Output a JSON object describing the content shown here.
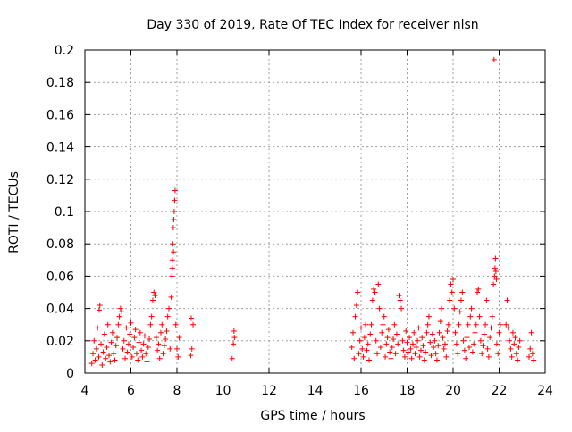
{
  "chart_data": {
    "type": "scatter",
    "title": "Day 330 of 2019, Rate Of TEC Index for receiver nlsn",
    "xlabel": "GPS time / hours",
    "ylabel": "ROTI / TECUs",
    "xlim": [
      4,
      24
    ],
    "ylim": [
      0,
      0.2
    ],
    "x_ticks": [
      "4",
      "6",
      "8",
      "10",
      "12",
      "14",
      "16",
      "18",
      "20",
      "22",
      "24"
    ],
    "y_ticks": [
      "0",
      "0.02",
      "0.04",
      "0.06",
      "0.08",
      "0.1",
      "0.12",
      "0.14",
      "0.16",
      "0.18",
      "0.2"
    ],
    "grid": true,
    "marker": "+",
    "series": [
      {
        "name": "ROTI",
        "color": "#ff0000",
        "points": [
          [
            4.3,
            0.006
          ],
          [
            4.35,
            0.012
          ],
          [
            4.4,
            0.02
          ],
          [
            4.45,
            0.008
          ],
          [
            4.5,
            0.015
          ],
          [
            4.55,
            0.028
          ],
          [
            4.6,
            0.01
          ],
          [
            4.62,
            0.039
          ],
          [
            4.65,
            0.042
          ],
          [
            4.7,
            0.018
          ],
          [
            4.75,
            0.005
          ],
          [
            4.8,
            0.013
          ],
          [
            4.85,
            0.024
          ],
          [
            4.9,
            0.009
          ],
          [
            4.95,
            0.016
          ],
          [
            5.0,
            0.03
          ],
          [
            5.05,
            0.011
          ],
          [
            5.1,
            0.007
          ],
          [
            5.15,
            0.019
          ],
          [
            5.2,
            0.025
          ],
          [
            5.25,
            0.012
          ],
          [
            5.3,
            0.008
          ],
          [
            5.35,
            0.017
          ],
          [
            5.4,
            0.022
          ],
          [
            5.45,
            0.03
          ],
          [
            5.5,
            0.035
          ],
          [
            5.55,
            0.04
          ],
          [
            5.6,
            0.038
          ],
          [
            5.65,
            0.015
          ],
          [
            5.7,
            0.02
          ],
          [
            5.75,
            0.009
          ],
          [
            5.8,
            0.028
          ],
          [
            5.85,
            0.013
          ],
          [
            5.9,
            0.018
          ],
          [
            5.95,
            0.024
          ],
          [
            6.0,
            0.031
          ],
          [
            6.05,
            0.01
          ],
          [
            6.1,
            0.016
          ],
          [
            6.15,
            0.022
          ],
          [
            6.2,
            0.027
          ],
          [
            6.25,
            0.012
          ],
          [
            6.3,
            0.008
          ],
          [
            6.35,
            0.019
          ],
          [
            6.4,
            0.025
          ],
          [
            6.45,
            0.014
          ],
          [
            6.5,
            0.01
          ],
          [
            6.55,
            0.018
          ],
          [
            6.6,
            0.023
          ],
          [
            6.65,
            0.012
          ],
          [
            6.7,
            0.007
          ],
          [
            6.75,
            0.016
          ],
          [
            6.8,
            0.021
          ],
          [
            6.85,
            0.03
          ],
          [
            6.9,
            0.035
          ],
          [
            6.95,
            0.045
          ],
          [
            7.0,
            0.05
          ],
          [
            7.05,
            0.048
          ],
          [
            7.1,
            0.022
          ],
          [
            7.15,
            0.014
          ],
          [
            7.2,
            0.018
          ],
          [
            7.25,
            0.009
          ],
          [
            7.3,
            0.025
          ],
          [
            7.35,
            0.03
          ],
          [
            7.4,
            0.012
          ],
          [
            7.45,
            0.017
          ],
          [
            7.5,
            0.021
          ],
          [
            7.55,
            0.026
          ],
          [
            7.6,
            0.035
          ],
          [
            7.65,
            0.04
          ],
          [
            7.7,
            0.015
          ],
          [
            7.75,
            0.047
          ],
          [
            7.78,
            0.06
          ],
          [
            7.8,
            0.07
          ],
          [
            7.82,
            0.08
          ],
          [
            7.84,
            0.09
          ],
          [
            7.86,
            0.095
          ],
          [
            7.88,
            0.1
          ],
          [
            7.9,
            0.107
          ],
          [
            7.92,
            0.113
          ],
          [
            7.85,
            0.075
          ],
          [
            7.8,
            0.065
          ],
          [
            7.95,
            0.03
          ],
          [
            8.0,
            0.015
          ],
          [
            8.05,
            0.01
          ],
          [
            8.1,
            0.022
          ],
          [
            8.6,
            0.011
          ],
          [
            8.65,
            0.015
          ],
          [
            8.7,
            0.03
          ],
          [
            8.62,
            0.034
          ],
          [
            10.4,
            0.009
          ],
          [
            10.45,
            0.018
          ],
          [
            10.5,
            0.022
          ],
          [
            10.48,
            0.026
          ],
          [
            15.6,
            0.016
          ],
          [
            15.65,
            0.025
          ],
          [
            15.7,
            0.009
          ],
          [
            15.75,
            0.035
          ],
          [
            15.8,
            0.042
          ],
          [
            15.85,
            0.05
          ],
          [
            15.9,
            0.012
          ],
          [
            15.95,
            0.02
          ],
          [
            16.0,
            0.028
          ],
          [
            16.05,
            0.015
          ],
          [
            16.1,
            0.01
          ],
          [
            16.15,
            0.022
          ],
          [
            16.2,
            0.03
          ],
          [
            16.25,
            0.014
          ],
          [
            16.3,
            0.018
          ],
          [
            16.35,
            0.008
          ],
          [
            16.4,
            0.024
          ],
          [
            16.45,
            0.03
          ],
          [
            16.5,
            0.045
          ],
          [
            16.55,
            0.052
          ],
          [
            16.6,
            0.05
          ],
          [
            16.65,
            0.02
          ],
          [
            16.7,
            0.012
          ],
          [
            16.75,
            0.055
          ],
          [
            16.8,
            0.04
          ],
          [
            16.85,
            0.016
          ],
          [
            16.9,
            0.025
          ],
          [
            16.95,
            0.03
          ],
          [
            17.0,
            0.035
          ],
          [
            17.05,
            0.01
          ],
          [
            17.1,
            0.018
          ],
          [
            17.15,
            0.022
          ],
          [
            17.2,
            0.027
          ],
          [
            17.25,
            0.013
          ],
          [
            17.3,
            0.009
          ],
          [
            17.35,
            0.016
          ],
          [
            17.4,
            0.021
          ],
          [
            17.45,
            0.03
          ],
          [
            17.5,
            0.012
          ],
          [
            17.55,
            0.024
          ],
          [
            17.6,
            0.018
          ],
          [
            17.65,
            0.048
          ],
          [
            17.7,
            0.045
          ],
          [
            17.75,
            0.04
          ],
          [
            17.8,
            0.02
          ],
          [
            17.85,
            0.014
          ],
          [
            17.9,
            0.01
          ],
          [
            17.95,
            0.026
          ],
          [
            18.0,
            0.019
          ],
          [
            18.05,
            0.013
          ],
          [
            18.1,
            0.022
          ],
          [
            18.15,
            0.015
          ],
          [
            18.2,
            0.009
          ],
          [
            18.25,
            0.018
          ],
          [
            18.3,
            0.025
          ],
          [
            18.35,
            0.012
          ],
          [
            18.4,
            0.016
          ],
          [
            18.45,
            0.02
          ],
          [
            18.5,
            0.028
          ],
          [
            18.55,
            0.01
          ],
          [
            18.6,
            0.014
          ],
          [
            18.65,
            0.022
          ],
          [
            18.7,
            0.017
          ],
          [
            18.75,
            0.008
          ],
          [
            18.8,
            0.013
          ],
          [
            18.85,
            0.025
          ],
          [
            18.9,
            0.03
          ],
          [
            18.95,
            0.035
          ],
          [
            19.0,
            0.019
          ],
          [
            19.05,
            0.011
          ],
          [
            19.1,
            0.024
          ],
          [
            19.15,
            0.016
          ],
          [
            19.2,
            0.02
          ],
          [
            19.25,
            0.012
          ],
          [
            19.3,
            0.008
          ],
          [
            19.35,
            0.017
          ],
          [
            19.4,
            0.025
          ],
          [
            19.45,
            0.032
          ],
          [
            19.5,
            0.04
          ],
          [
            19.55,
            0.022
          ],
          [
            19.6,
            0.015
          ],
          [
            19.65,
            0.018
          ],
          [
            19.7,
            0.01
          ],
          [
            19.75,
            0.026
          ],
          [
            19.8,
            0.03
          ],
          [
            19.85,
            0.045
          ],
          [
            19.9,
            0.055
          ],
          [
            19.95,
            0.05
          ],
          [
            20.0,
            0.058
          ],
          [
            20.05,
            0.04
          ],
          [
            20.1,
            0.025
          ],
          [
            20.15,
            0.018
          ],
          [
            20.2,
            0.012
          ],
          [
            20.25,
            0.03
          ],
          [
            20.3,
            0.038
          ],
          [
            20.35,
            0.045
          ],
          [
            20.4,
            0.05
          ],
          [
            20.45,
            0.02
          ],
          [
            20.5,
            0.014
          ],
          [
            20.55,
            0.009
          ],
          [
            20.6,
            0.022
          ],
          [
            20.65,
            0.03
          ],
          [
            20.7,
            0.016
          ],
          [
            20.75,
            0.035
          ],
          [
            20.8,
            0.04
          ],
          [
            20.85,
            0.013
          ],
          [
            20.9,
            0.018
          ],
          [
            20.95,
            0.025
          ],
          [
            21.0,
            0.03
          ],
          [
            21.05,
            0.05
          ],
          [
            21.1,
            0.052
          ],
          [
            21.15,
            0.035
          ],
          [
            21.2,
            0.02
          ],
          [
            21.25,
            0.012
          ],
          [
            21.3,
            0.017
          ],
          [
            21.35,
            0.024
          ],
          [
            21.4,
            0.03
          ],
          [
            21.45,
            0.045
          ],
          [
            21.5,
            0.015
          ],
          [
            21.55,
            0.01
          ],
          [
            21.6,
            0.022
          ],
          [
            21.65,
            0.028
          ],
          [
            21.7,
            0.035
          ],
          [
            21.75,
            0.055
          ],
          [
            21.8,
            0.06
          ],
          [
            21.82,
            0.065
          ],
          [
            21.84,
            0.071
          ],
          [
            21.86,
            0.063
          ],
          [
            21.88,
            0.058
          ],
          [
            21.78,
            0.194
          ],
          [
            21.9,
            0.018
          ],
          [
            21.95,
            0.012
          ],
          [
            22.0,
            0.025
          ],
          [
            22.05,
            0.03
          ],
          [
            22.3,
            0.03
          ],
          [
            22.35,
            0.045
          ],
          [
            22.4,
            0.028
          ],
          [
            22.45,
            0.02
          ],
          [
            22.5,
            0.015
          ],
          [
            22.55,
            0.01
          ],
          [
            22.6,
            0.025
          ],
          [
            22.65,
            0.018
          ],
          [
            22.7,
            0.022
          ],
          [
            22.75,
            0.012
          ],
          [
            22.8,
            0.008
          ],
          [
            22.85,
            0.016
          ],
          [
            22.9,
            0.02
          ],
          [
            23.3,
            0.01
          ],
          [
            23.35,
            0.015
          ],
          [
            23.4,
            0.025
          ],
          [
            23.45,
            0.012
          ],
          [
            23.5,
            0.008
          ]
        ]
      }
    ]
  }
}
